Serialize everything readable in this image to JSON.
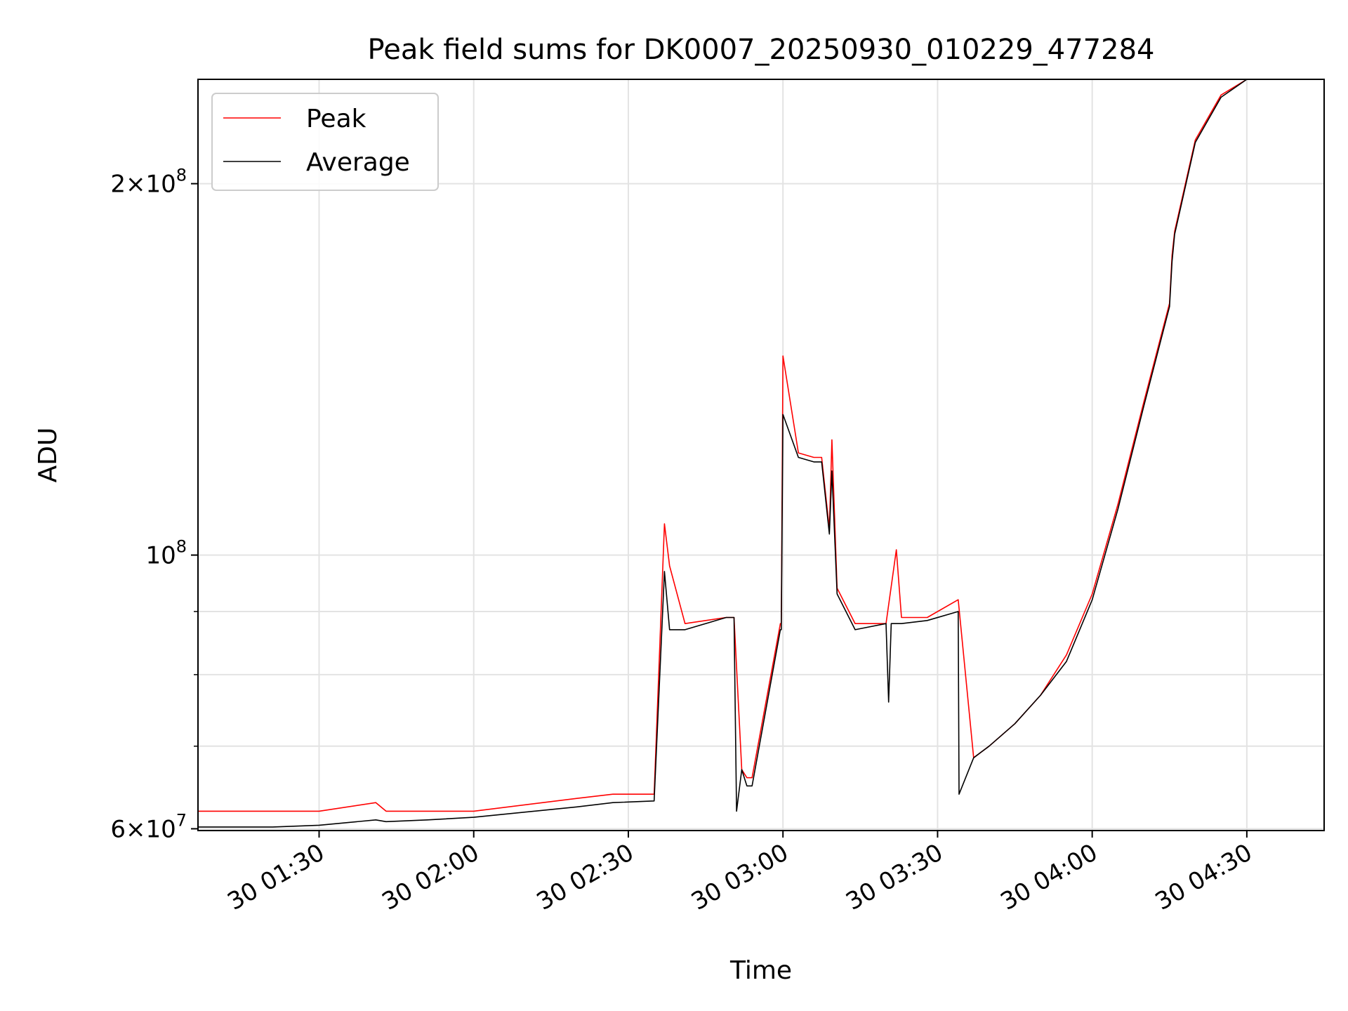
{
  "chart_data": {
    "type": "line",
    "title": "Peak field sums for DK0007_20250930_010229_477284",
    "xlabel": "Time",
    "ylabel": "ADU",
    "yscale": "log",
    "xlim": [
      "2025-09-30T01:06:30",
      "2025-09-30T04:45:00"
    ],
    "ylim": [
      59800000,
      243000000
    ],
    "xticks": [
      {
        "value": "2025-09-30T01:30:00",
        "label": "30 01:30"
      },
      {
        "value": "2025-09-30T02:00:00",
        "label": "30 02:00"
      },
      {
        "value": "2025-09-30T02:30:00",
        "label": "30 02:30"
      },
      {
        "value": "2025-09-30T03:00:00",
        "label": "30 03:00"
      },
      {
        "value": "2025-09-30T03:30:00",
        "label": "30 03:30"
      },
      {
        "value": "2025-09-30T04:00:00",
        "label": "30 04:00"
      },
      {
        "value": "2025-09-30T04:30:00",
        "label": "30 04:30"
      }
    ],
    "yticks_major": [
      {
        "value": 60000000,
        "base": "6",
        "exp": "7"
      },
      {
        "value": 100000000,
        "base": "",
        "exp": "8"
      },
      {
        "value": 200000000,
        "base": "2",
        "exp": "8"
      }
    ],
    "yticks_minor": [
      70000000,
      80000000,
      90000000
    ],
    "grid": true,
    "legend_position": "top-left",
    "series": [
      {
        "name": "Peak",
        "color": "#ff0000",
        "x": [
          "01:06:30",
          "01:21:00",
          "01:30:00",
          "01:41:00",
          "01:43:00",
          "01:51:00",
          "02:00:00",
          "02:20:00",
          "02:27:00",
          "02:35:00",
          "02:37:00",
          "02:38:00",
          "02:41:00",
          "02:49:00",
          "02:50:30",
          "02:52:00",
          "02:53:00",
          "02:54:00",
          "02:59:30",
          "02:59:40",
          "03:00:00",
          "03:03:00",
          "03:06:00",
          "03:07:30",
          "03:09:00",
          "03:09:30",
          "03:10:30",
          "03:14:00",
          "03:20:00",
          "03:22:00",
          "03:23:00",
          "03:28:00",
          "03:34:00",
          "03:37:00",
          "03:40:00",
          "03:45:00",
          "03:50:00",
          "03:55:00",
          "04:00:00",
          "04:05:00",
          "04:10:00",
          "04:15:00",
          "04:15:30",
          "04:16:00",
          "04:20:00",
          "04:25:00",
          "04:30:00",
          "04:45:00"
        ],
        "y": [
          62000000,
          62000000,
          62000000,
          63000000,
          62000000,
          62000000,
          62000000,
          63500000,
          64000000,
          64000000,
          106000000,
          98000000,
          88000000,
          89000000,
          89000000,
          67000000,
          66000000,
          66000000,
          88000000,
          88000000,
          145000000,
          121000000,
          120000000,
          120000000,
          105000000,
          124000000,
          94000000,
          88000000,
          88000000,
          101000000,
          89000000,
          89000000,
          92000000,
          68500000,
          70000000,
          73000000,
          77000000,
          83000000,
          93000000,
          110000000,
          133000000,
          160000000,
          175000000,
          183000000,
          217000000,
          236000000,
          243000000,
          243000000
        ]
      },
      {
        "name": "Average",
        "color": "#000000",
        "x": [
          "01:06:30",
          "01:21:00",
          "01:30:00",
          "01:41:00",
          "01:43:00",
          "01:51:00",
          "02:00:00",
          "02:20:00",
          "02:27:00",
          "02:35:00",
          "02:37:00",
          "02:38:00",
          "02:41:00",
          "02:49:00",
          "02:50:30",
          "02:51:00",
          "02:52:00",
          "02:53:00",
          "02:54:00",
          "02:59:30",
          "02:59:40",
          "03:00:00",
          "03:03:00",
          "03:06:00",
          "03:07:30",
          "03:09:00",
          "03:09:30",
          "03:10:30",
          "03:14:00",
          "03:20:00",
          "03:20:30",
          "03:21:00",
          "03:23:00",
          "03:28:00",
          "03:34:00",
          "03:34:10",
          "03:37:00",
          "03:40:00",
          "03:45:00",
          "03:50:00",
          "03:55:00",
          "04:00:00",
          "04:05:00",
          "04:10:00",
          "04:15:00",
          "04:15:30",
          "04:16:00",
          "04:20:00",
          "04:25:00",
          "04:30:00",
          "04:45:00"
        ],
        "y": [
          60200000,
          60200000,
          60400000,
          61000000,
          60800000,
          61000000,
          61300000,
          62500000,
          63000000,
          63200000,
          97000000,
          87000000,
          87000000,
          89000000,
          89000000,
          62000000,
          67000000,
          65000000,
          65000000,
          87000000,
          87000000,
          130000000,
          120000000,
          119000000,
          119000000,
          104000000,
          117000000,
          93000000,
          87000000,
          88000000,
          76000000,
          88000000,
          88000000,
          88500000,
          90000000,
          64000000,
          68500000,
          70000000,
          73000000,
          77000000,
          82000000,
          92000000,
          109000000,
          132000000,
          159000000,
          173000000,
          182000000,
          216000000,
          235000000,
          243000000,
          243000000
        ]
      }
    ]
  }
}
